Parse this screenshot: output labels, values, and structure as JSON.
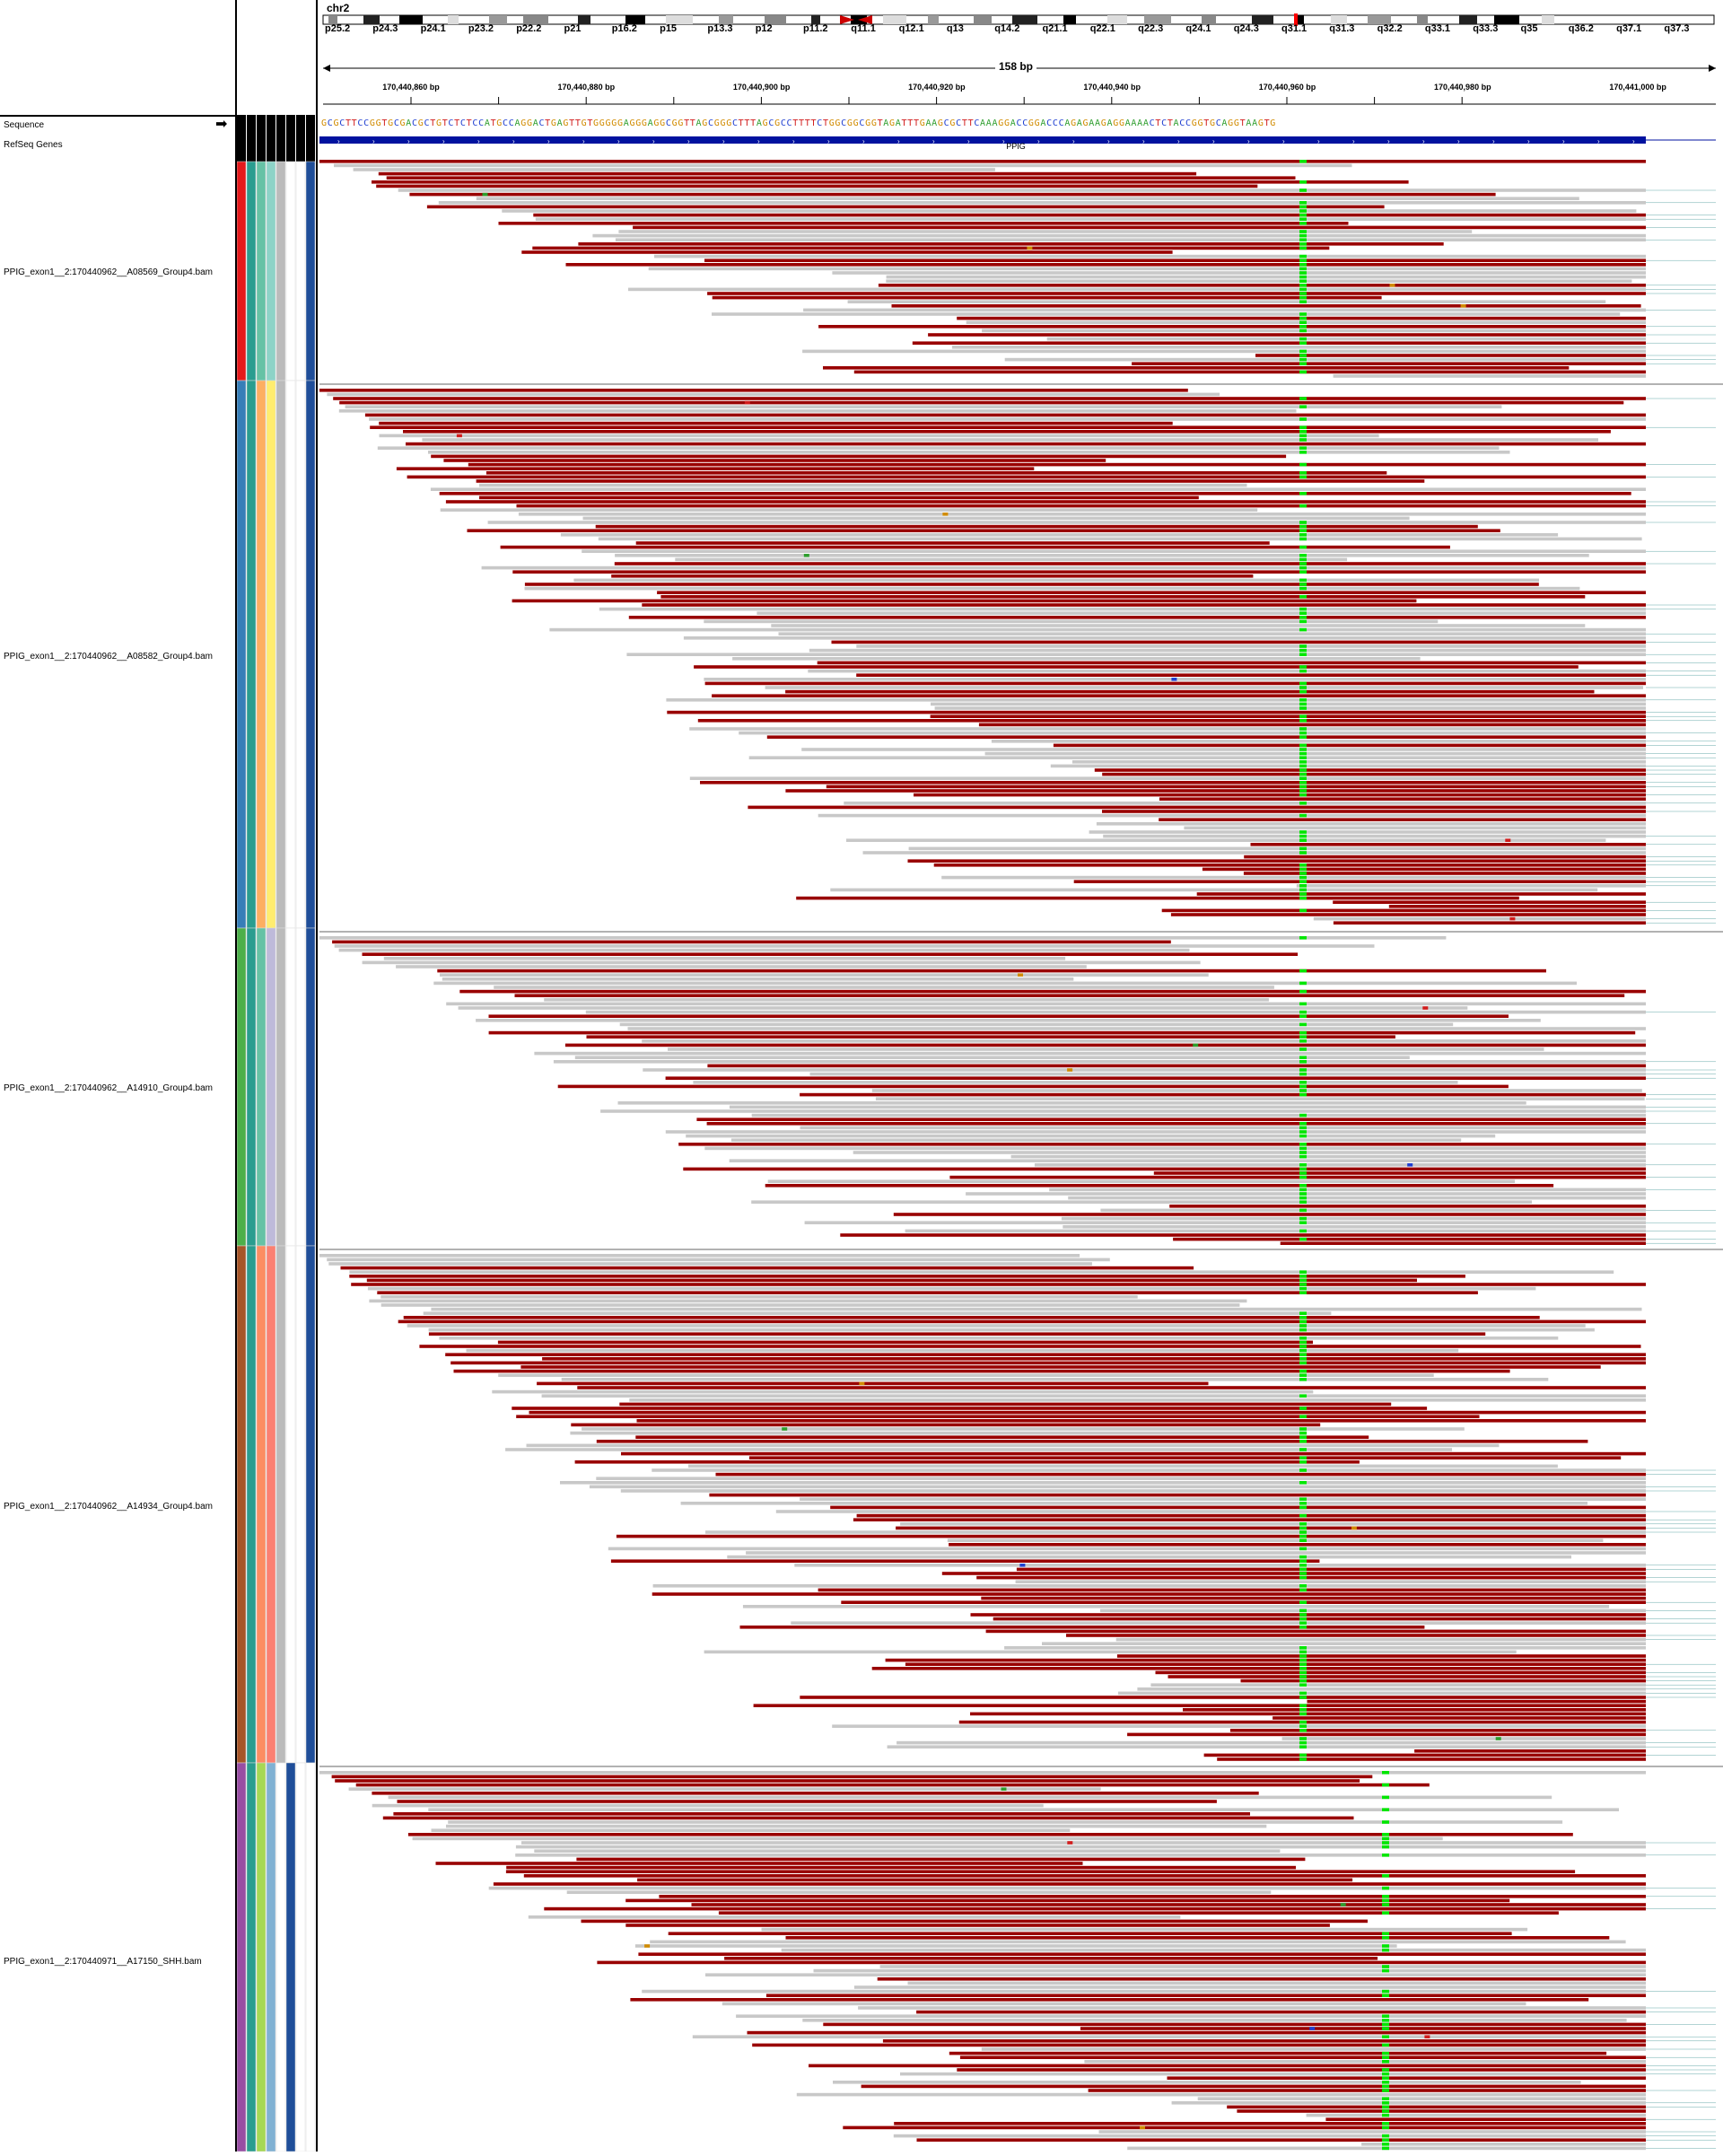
{
  "chromosome": "chr2",
  "ideogram_bands": [
    "p25.2",
    "p24.3",
    "p24.1",
    "p23.2",
    "p22.2",
    "p21",
    "p16.2",
    "p15",
    "p13.3",
    "p12",
    "p11.2",
    "q11.1",
    "q12.1",
    "q13",
    "q14.2",
    "q21.1",
    "q22.1",
    "q22.3",
    "q24.1",
    "q24.3",
    "q31.1",
    "q31.3",
    "q32.2",
    "q33.1",
    "q33.3",
    "q35",
    "q36.2",
    "q37.1",
    "q37.3"
  ],
  "ruler": {
    "span": "158 bp",
    "ticks": [
      "170,440,860 bp",
      "170,440,880 bp",
      "170,440,900 bp",
      "170,440,920 bp",
      "170,440,940 bp",
      "170,440,960 bp",
      "170,440,980 bp",
      "170,441,000 bp"
    ]
  },
  "tracks": {
    "sequence": "Sequence",
    "refseq": "RefSeq Genes",
    "gene": "PPIG"
  },
  "sequence_bases": "GCGCTTCCGGTGCGACGCTGTCTCTCCATGCCAGGACTGAGTTGTGGGGGAGGGAGGCGGTTAGCGGGCTTTAGCGCCTTTTCTGGCGGCGGTAGATTTGAAGCGCTTCAAAGGACCGGACCCAGAGAAGAGGAAAACTCTACCGGTGCAGGTAAGTG",
  "samples": [
    {
      "label": "PPIG_exon1__2:170440962__A08569_Group4.bam"
    },
    {
      "label": "PPIG_exon1__2:170440962__A08582_Group4.bam"
    },
    {
      "label": "PPIG_exon1__2:170440962__A14910_Group4.bam"
    },
    {
      "label": "PPIG_exon1__2:170440962__A14934_Group4.bam"
    },
    {
      "label": "PPIG_exon1__2:170440971__A17150_SHH.bam"
    }
  ],
  "colors": {
    "read_forward": "#990000",
    "read_reverse": "#c8c8c8",
    "variant": "#00e600",
    "gene": "#00129f"
  }
}
